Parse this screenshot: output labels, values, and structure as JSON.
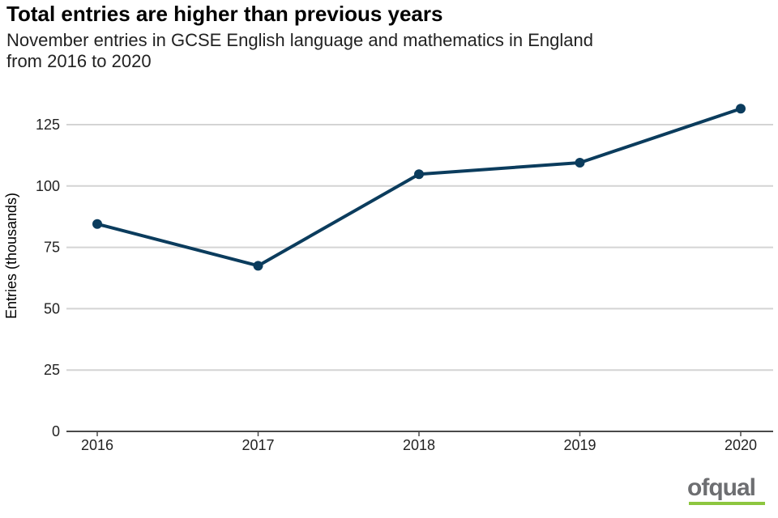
{
  "chart_data": {
    "type": "line",
    "title": "Total entries are higher than previous years",
    "subtitle_line1": "November entries in GCSE English language and mathematics in England",
    "subtitle_line2": "from 2016 to 2020",
    "xlabel": "",
    "ylabel": "Entries (thousands)",
    "categories": [
      "2016",
      "2017",
      "2018",
      "2019",
      "2020"
    ],
    "series": [
      {
        "name": "Entries",
        "values": [
          84.5,
          67.5,
          104.8,
          109.5,
          131.5
        ],
        "color": "#0b3c5d"
      }
    ],
    "ylim": [
      0,
      137
    ],
    "yticks": [
      0,
      25,
      50,
      75,
      100,
      125
    ],
    "grid": true
  },
  "branding": {
    "logo_text": "ofqual",
    "logo_color": "#6d6e71",
    "logo_accent": "#8dc63f"
  }
}
